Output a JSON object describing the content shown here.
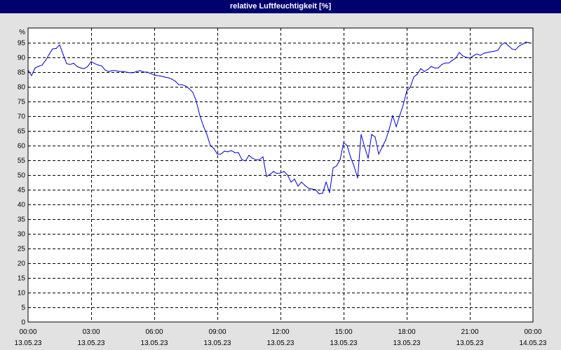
{
  "colors": {
    "background": "#e2e2e2",
    "title_bar": "#00006e",
    "title_text": "#ffffff",
    "plot_background": "#ffffff",
    "grid": "#000000"
  },
  "chart_data": {
    "type": "line",
    "title": "relative Luftfeuchtigkeit [%]",
    "xlabel": "",
    "ylabel": "%",
    "ylim": [
      0,
      100
    ],
    "y_ticks": [
      0,
      5,
      10,
      15,
      20,
      25,
      30,
      35,
      40,
      45,
      50,
      55,
      60,
      65,
      70,
      75,
      80,
      85,
      90,
      95
    ],
    "xlim": [
      "13.05.23 00:00",
      "14.05.23 00:00"
    ],
    "x_ticks": [
      {
        "time": "00:00",
        "date": "13.05.23"
      },
      {
        "time": "03:00",
        "date": "13.05.23"
      },
      {
        "time": "06:00",
        "date": "13.05.23"
      },
      {
        "time": "09:00",
        "date": "13.05.23"
      },
      {
        "time": "12:00",
        "date": "13.05.23"
      },
      {
        "time": "15:00",
        "date": "13.05.23"
      },
      {
        "time": "18:00",
        "date": "13.05.23"
      },
      {
        "time": "21:00",
        "date": "13.05.23"
      },
      {
        "time": "00:00",
        "date": "14.05.23"
      }
    ],
    "grid": true,
    "legend": "none",
    "series": [
      {
        "color": "#0000cc",
        "points": [
          [
            "13.05.23 00:00",
            85.7
          ],
          [
            "13.05.23 00:10",
            83.8
          ],
          [
            "13.05.23 00:20",
            86.4
          ],
          [
            "13.05.23 00:30",
            87.0
          ],
          [
            "13.05.23 00:40",
            87.4
          ],
          [
            "13.05.23 00:50",
            89.0
          ],
          [
            "13.05.23 01:00",
            91.0
          ],
          [
            "13.05.23 01:10",
            92.9
          ],
          [
            "13.05.23 01:20",
            93.0
          ],
          [
            "13.05.23 01:30",
            94.3
          ],
          [
            "13.05.23 01:40",
            91.0
          ],
          [
            "13.05.23 01:50",
            87.9
          ],
          [
            "13.05.23 02:00",
            87.6
          ],
          [
            "13.05.23 02:10",
            88.0
          ],
          [
            "13.05.23 02:20",
            86.9
          ],
          [
            "13.05.23 02:30",
            86.4
          ],
          [
            "13.05.23 02:40",
            86.2
          ],
          [
            "13.05.23 02:50",
            86.9
          ],
          [
            "13.05.23 03:00",
            88.6
          ],
          [
            "13.05.23 03:10",
            87.9
          ],
          [
            "13.05.23 03:20",
            87.4
          ],
          [
            "13.05.23 03:30",
            87.1
          ],
          [
            "13.05.23 03:40",
            85.7
          ],
          [
            "13.05.23 03:50",
            85.2
          ],
          [
            "13.05.23 04:00",
            85.5
          ],
          [
            "13.05.23 04:10",
            85.5
          ],
          [
            "13.05.23 04:20",
            85.2
          ],
          [
            "13.05.23 04:30",
            85.2
          ],
          [
            "13.05.23 04:40",
            85.0
          ],
          [
            "13.05.23 04:50",
            84.8
          ],
          [
            "13.05.23 05:00",
            84.8
          ],
          [
            "13.05.23 05:10",
            85.2
          ],
          [
            "13.05.23 05:20",
            85.5
          ],
          [
            "13.05.23 05:30",
            85.0
          ],
          [
            "13.05.23 05:40",
            85.0
          ],
          [
            "13.05.23 05:50",
            84.5
          ],
          [
            "13.05.23 06:00",
            84.0
          ],
          [
            "13.05.23 06:10",
            83.8
          ],
          [
            "13.05.23 06:20",
            83.6
          ],
          [
            "13.05.23 06:30",
            83.3
          ],
          [
            "13.05.23 06:40",
            83.1
          ],
          [
            "13.05.23 06:50",
            82.6
          ],
          [
            "13.05.23 07:00",
            81.9
          ],
          [
            "13.05.23 07:10",
            80.7
          ],
          [
            "13.05.23 07:20",
            80.7
          ],
          [
            "13.05.23 07:30",
            80.2
          ],
          [
            "13.05.23 07:40",
            79.3
          ],
          [
            "13.05.23 07:50",
            78.1
          ],
          [
            "13.05.23 08:00",
            75.0
          ],
          [
            "13.05.23 08:10",
            70.2
          ],
          [
            "13.05.23 08:20",
            66.7
          ],
          [
            "13.05.23 08:30",
            63.8
          ],
          [
            "13.05.23 08:40",
            60.0
          ],
          [
            "13.05.23 08:50",
            59.0
          ],
          [
            "13.05.23 09:00",
            57.1
          ],
          [
            "13.05.23 09:10",
            57.1
          ],
          [
            "13.05.23 09:20",
            58.1
          ],
          [
            "13.05.23 09:30",
            57.9
          ],
          [
            "13.05.23 09:40",
            58.3
          ],
          [
            "13.05.23 09:50",
            57.6
          ],
          [
            "13.05.23 10:00",
            57.6
          ],
          [
            "13.05.23 10:10",
            55.2
          ],
          [
            "13.05.23 10:20",
            54.8
          ],
          [
            "13.05.23 10:30",
            56.7
          ],
          [
            "13.05.23 10:40",
            55.7
          ],
          [
            "13.05.23 10:50",
            55.2
          ],
          [
            "13.05.23 11:00",
            55.2
          ],
          [
            "13.05.23 11:10",
            56.2
          ],
          [
            "13.05.23 11:20",
            49.5
          ],
          [
            "13.05.23 11:30",
            50.2
          ],
          [
            "13.05.23 11:40",
            51.2
          ],
          [
            "13.05.23 11:50",
            50.5
          ],
          [
            "13.05.23 12:00",
            50.7
          ],
          [
            "13.05.23 12:10",
            51.2
          ],
          [
            "13.05.23 12:20",
            50.0
          ],
          [
            "13.05.23 12:30",
            47.6
          ],
          [
            "13.05.23 12:40",
            48.6
          ],
          [
            "13.05.23 12:50",
            46.2
          ],
          [
            "13.05.23 13:00",
            47.6
          ],
          [
            "13.05.23 13:10",
            46.4
          ],
          [
            "13.05.23 13:20",
            45.5
          ],
          [
            "13.05.23 13:30",
            45.2
          ],
          [
            "13.05.23 13:40",
            45.0
          ],
          [
            "13.05.23 13:50",
            43.6
          ],
          [
            "13.05.23 14:00",
            43.8
          ],
          [
            "13.05.23 14:10",
            47.6
          ],
          [
            "13.05.23 14:20",
            44.0
          ],
          [
            "13.05.23 14:30",
            52.4
          ],
          [
            "13.05.23 14:40",
            53.1
          ],
          [
            "13.05.23 14:50",
            55.2
          ],
          [
            "13.05.23 15:00",
            61.0
          ],
          [
            "13.05.23 15:10",
            60.0
          ],
          [
            "13.05.23 15:20",
            56.0
          ],
          [
            "13.05.23 15:30",
            52.9
          ],
          [
            "13.05.23 15:40",
            49.0
          ],
          [
            "13.05.23 15:50",
            63.8
          ],
          [
            "13.05.23 16:00",
            59.5
          ],
          [
            "13.05.23 16:10",
            55.7
          ],
          [
            "13.05.23 16:20",
            63.8
          ],
          [
            "13.05.23 16:30",
            62.9
          ],
          [
            "13.05.23 16:40",
            57.1
          ],
          [
            "13.05.23 16:50",
            59.5
          ],
          [
            "13.05.23 17:00",
            61.9
          ],
          [
            "13.05.23 17:10",
            65.5
          ],
          [
            "13.05.23 17:20",
            70.2
          ],
          [
            "13.05.23 17:30",
            66.4
          ],
          [
            "13.05.23 17:40",
            70.2
          ],
          [
            "13.05.23 17:50",
            73.8
          ],
          [
            "13.05.23 18:00",
            78.6
          ],
          [
            "13.05.23 18:10",
            79.8
          ],
          [
            "13.05.23 18:20",
            83.3
          ],
          [
            "13.05.23 18:30",
            84.3
          ],
          [
            "13.05.23 18:40",
            86.2
          ],
          [
            "13.05.23 18:50",
            85.2
          ],
          [
            "13.05.23 19:00",
            85.9
          ],
          [
            "13.05.23 19:10",
            86.9
          ],
          [
            "13.05.23 19:20",
            86.4
          ],
          [
            "13.05.23 19:30",
            86.4
          ],
          [
            "13.05.23 19:40",
            87.6
          ],
          [
            "13.05.23 19:50",
            88.1
          ],
          [
            "13.05.23 20:00",
            88.1
          ],
          [
            "13.05.23 20:10",
            89.0
          ],
          [
            "13.05.23 20:20",
            89.8
          ],
          [
            "13.05.23 20:30",
            91.7
          ],
          [
            "13.05.23 20:40",
            90.5
          ],
          [
            "13.05.23 20:50",
            90.0
          ],
          [
            "13.05.23 21:00",
            89.8
          ],
          [
            "13.05.23 21:10",
            90.5
          ],
          [
            "13.05.23 21:20",
            91.2
          ],
          [
            "13.05.23 21:30",
            90.7
          ],
          [
            "13.05.23 21:40",
            91.4
          ],
          [
            "13.05.23 21:50",
            91.7
          ],
          [
            "13.05.23 22:00",
            91.9
          ],
          [
            "13.05.23 22:10",
            92.1
          ],
          [
            "13.05.23 22:20",
            92.4
          ],
          [
            "13.05.23 22:30",
            94.3
          ],
          [
            "13.05.23 22:40",
            95.0
          ],
          [
            "13.05.23 22:50",
            94.0
          ],
          [
            "13.05.23 23:00",
            92.9
          ],
          [
            "13.05.23 23:10",
            92.6
          ],
          [
            "13.05.23 23:20",
            93.8
          ],
          [
            "13.05.23 23:30",
            94.5
          ],
          [
            "13.05.23 23:40",
            95.2
          ],
          [
            "13.05.23 23:50",
            95.0
          ]
        ]
      }
    ]
  }
}
